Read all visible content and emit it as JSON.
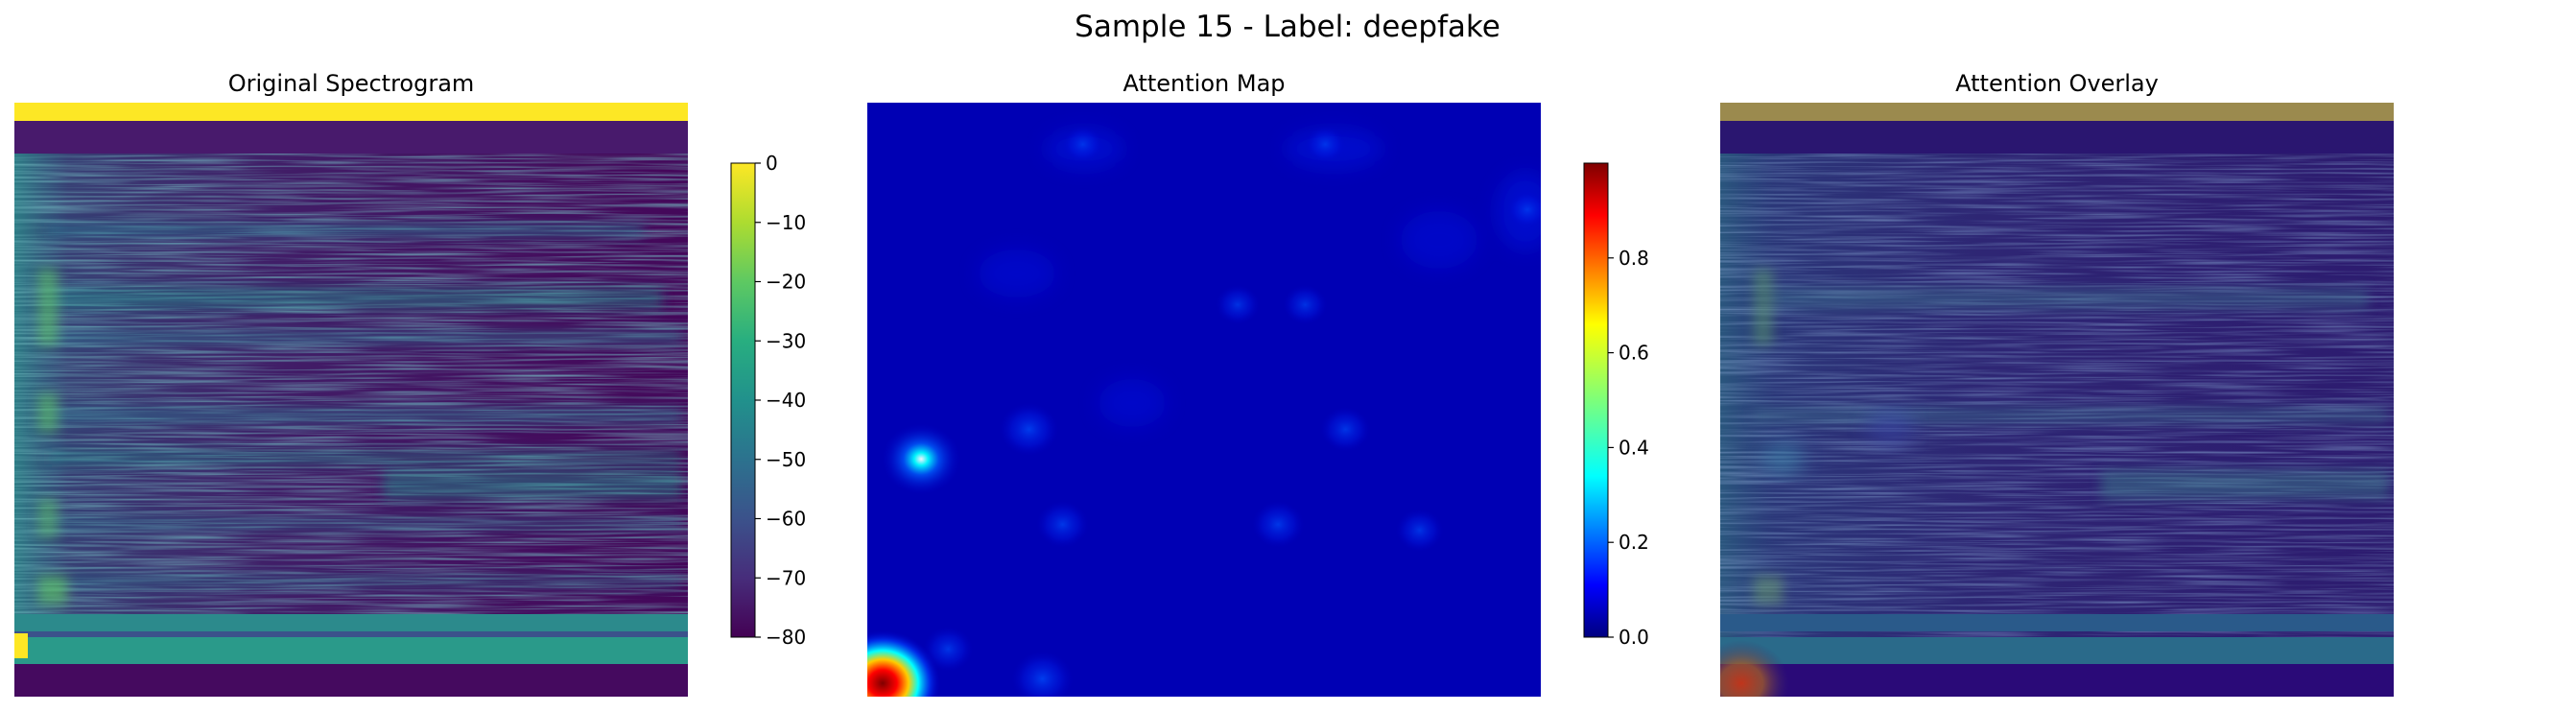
{
  "suptitle": "Sample 15 - Label: deepfake",
  "chart_data": [
    {
      "type": "heatmap",
      "title": "Original Spectrogram",
      "colormap": "viridis",
      "colorbar": {
        "range": [
          -80,
          0
        ],
        "ticks": [
          0,
          -10,
          -20,
          -30,
          -40,
          -50,
          -60,
          -70,
          -80
        ]
      },
      "axes": "off"
    },
    {
      "type": "heatmap",
      "title": "Attention Map",
      "colormap": "jet",
      "colorbar": {
        "range": [
          0.0,
          1.0
        ],
        "ticks": [
          0.0,
          0.2,
          0.4,
          0.6,
          0.8
        ]
      },
      "axes": "off",
      "hotspots": [
        {
          "x": 0.08,
          "y": 0.6,
          "value": 0.45
        },
        {
          "x": 0.24,
          "y": 0.55,
          "value": 0.28
        },
        {
          "x": 0.29,
          "y": 0.71,
          "value": 0.22
        },
        {
          "x": 0.61,
          "y": 0.71,
          "value": 0.22
        },
        {
          "x": 0.71,
          "y": 0.55,
          "value": 0.2
        },
        {
          "x": 0.82,
          "y": 0.72,
          "value": 0.18
        },
        {
          "x": 0.02,
          "y": 0.97,
          "value": 1.0
        },
        {
          "x": 0.26,
          "y": 0.97,
          "value": 0.3
        },
        {
          "x": 0.12,
          "y": 0.92,
          "value": 0.2
        },
        {
          "x": 0.55,
          "y": 0.34,
          "value": 0.15
        },
        {
          "x": 0.65,
          "y": 0.34,
          "value": 0.15
        },
        {
          "x": 0.32,
          "y": 0.07,
          "value": 0.12
        },
        {
          "x": 0.68,
          "y": 0.07,
          "value": 0.12
        },
        {
          "x": 0.98,
          "y": 0.18,
          "value": 0.12
        }
      ]
    },
    {
      "type": "heatmap",
      "title": "Attention Overlay",
      "colormap": "viridis + jet overlay",
      "axes": "off"
    }
  ]
}
